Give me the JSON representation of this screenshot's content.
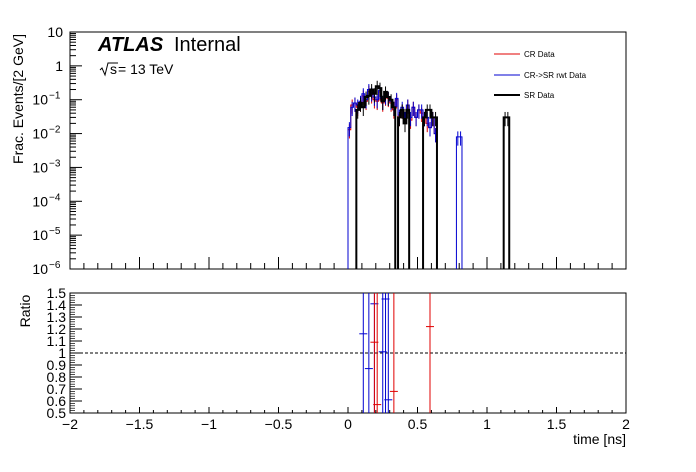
{
  "atlas": {
    "label": "ATLAS",
    "status": "Internal",
    "energy_prefix": "s",
    "energy_suffix": " = 13 TeV"
  },
  "chart_data": {
    "type": "step-histogram with ratio panel",
    "x_range": [
      -2,
      2
    ],
    "xlabel": "time [ns]",
    "x_ticks": [
      -2,
      -1.5,
      -1,
      -0.5,
      0,
      0.5,
      1,
      1.5,
      2
    ],
    "x_tick_labels": [
      "−2",
      "−1.5",
      "−1",
      "−0.5",
      "0",
      "0.5",
      "1",
      "1.5",
      "2"
    ],
    "top": {
      "ylabel": "Frac. Events/[2 GeV]",
      "yscale": "log",
      "ylim": [
        1e-06,
        10
      ],
      "y_ticks": [
        {
          "v": 10,
          "base": "10",
          "exp": ""
        },
        {
          "v": 1,
          "base": "1",
          "exp": ""
        },
        {
          "v": 0.1,
          "base": "10",
          "exp": "−1"
        },
        {
          "v": 0.01,
          "base": "10",
          "exp": "−2"
        },
        {
          "v": 0.001,
          "base": "10",
          "exp": "−3"
        },
        {
          "v": 0.0001,
          "base": "10",
          "exp": "−4"
        },
        {
          "v": 1e-05,
          "base": "10",
          "exp": "−5"
        },
        {
          "v": 1e-06,
          "base": "10",
          "exp": "−6"
        }
      ],
      "series": [
        {
          "name": "CR Data",
          "color": "#e00000",
          "width": 1,
          "x": [
            0.0,
            0.02,
            0.04,
            0.06,
            0.08,
            0.1,
            0.12,
            0.14,
            0.16,
            0.18,
            0.2,
            0.22,
            0.24,
            0.26,
            0.28,
            0.3,
            0.32,
            0.34,
            0.36,
            0.38,
            0.4,
            0.42,
            0.44,
            0.46,
            0.48,
            0.5,
            0.52,
            0.54,
            0.56,
            0.58,
            0.6,
            0.62
          ],
          "y": [
            0.013,
            0.07,
            0.08,
            0.06,
            0.08,
            0.13,
            0.09,
            0.18,
            0.14,
            0.1,
            0.09,
            0.17,
            0.08,
            0.12,
            0.11,
            0.08,
            0.05,
            0.1,
            0.03,
            0.05,
            0.03,
            0.07,
            0.025,
            0.06,
            0.03,
            0.05,
            0.04,
            0.03,
            0.02,
            0.015,
            0.03,
            0.01
          ]
        },
        {
          "name": "CR->SR rwt Data",
          "color": "#0000d0",
          "width": 1,
          "x": [
            0.0,
            0.02,
            0.04,
            0.06,
            0.08,
            0.1,
            0.12,
            0.14,
            0.16,
            0.18,
            0.2,
            0.22,
            0.24,
            0.26,
            0.28,
            0.3,
            0.32,
            0.34,
            0.36,
            0.38,
            0.4,
            0.42,
            0.44,
            0.46,
            0.48,
            0.5,
            0.52,
            0.54,
            0.56,
            0.58,
            0.6,
            0.62,
            0.78,
            0.8
          ],
          "y": [
            0.015,
            0.06,
            0.08,
            0.07,
            0.09,
            0.15,
            0.1,
            0.2,
            0.16,
            0.12,
            0.1,
            0.19,
            0.09,
            0.13,
            0.12,
            0.09,
            0.06,
            0.11,
            0.035,
            0.06,
            0.03,
            0.07,
            0.03,
            0.06,
            0.03,
            0.05,
            0.05,
            0.03,
            0.03,
            0.015,
            0.03,
            0.01,
            0.008,
            0.008
          ]
        },
        {
          "name": "SR Data",
          "color": "#000000",
          "width": 2,
          "x": [
            0.06,
            0.08,
            0.1,
            0.12,
            0.14,
            0.16,
            0.18,
            0.2,
            0.22,
            0.24,
            0.26,
            0.28,
            0.3,
            0.32,
            0.36,
            0.38,
            0.4,
            0.42,
            0.54,
            0.56,
            0.58,
            0.6,
            0.62,
            1.12,
            1.14
          ],
          "y": [
            0.05,
            0.08,
            0.06,
            0.12,
            0.13,
            0.2,
            0.15,
            0.25,
            0.22,
            0.09,
            0.17,
            0.12,
            0.1,
            0.06,
            0.03,
            0.05,
            0.02,
            0.05,
            0.03,
            0.05,
            0.05,
            0.03,
            0.03,
            0.03,
            0.03
          ]
        }
      ]
    },
    "ratio": {
      "ylabel": "Ratio",
      "ylim": [
        0.5,
        1.5
      ],
      "y_ticks": [
        0.5,
        0.6,
        0.7,
        0.8,
        0.9,
        1,
        1.1,
        1.2,
        1.3,
        1.4,
        1.5
      ],
      "y_tick_labels": [
        "0.5",
        "0.6",
        "0.7",
        "0.8",
        "0.9",
        "1",
        "1.1",
        "1.2",
        "1.3",
        "1.4",
        "1.5"
      ],
      "reference_line": 1,
      "points": [
        {
          "x": 0.11,
          "y": 1.16,
          "color": "#0000d0"
        },
        {
          "x": 0.15,
          "y": 0.87,
          "color": "#0000d0"
        },
        {
          "x": 0.19,
          "y": 1.41,
          "color": "#0000d0"
        },
        {
          "x": 0.19,
          "y": 1.09,
          "color": "#e00000"
        },
        {
          "x": 0.21,
          "y": 0.57,
          "color": "#e00000"
        },
        {
          "x": 0.25,
          "y": 1.01,
          "color": "#0000d0"
        },
        {
          "x": 0.27,
          "y": 1.45,
          "color": "#0000d0"
        },
        {
          "x": 0.29,
          "y": 0.61,
          "color": "#0000d0"
        },
        {
          "x": 0.33,
          "y": 0.68,
          "color": "#e00000"
        },
        {
          "x": 0.59,
          "y": 1.22,
          "color": "#e00000"
        }
      ]
    }
  }
}
